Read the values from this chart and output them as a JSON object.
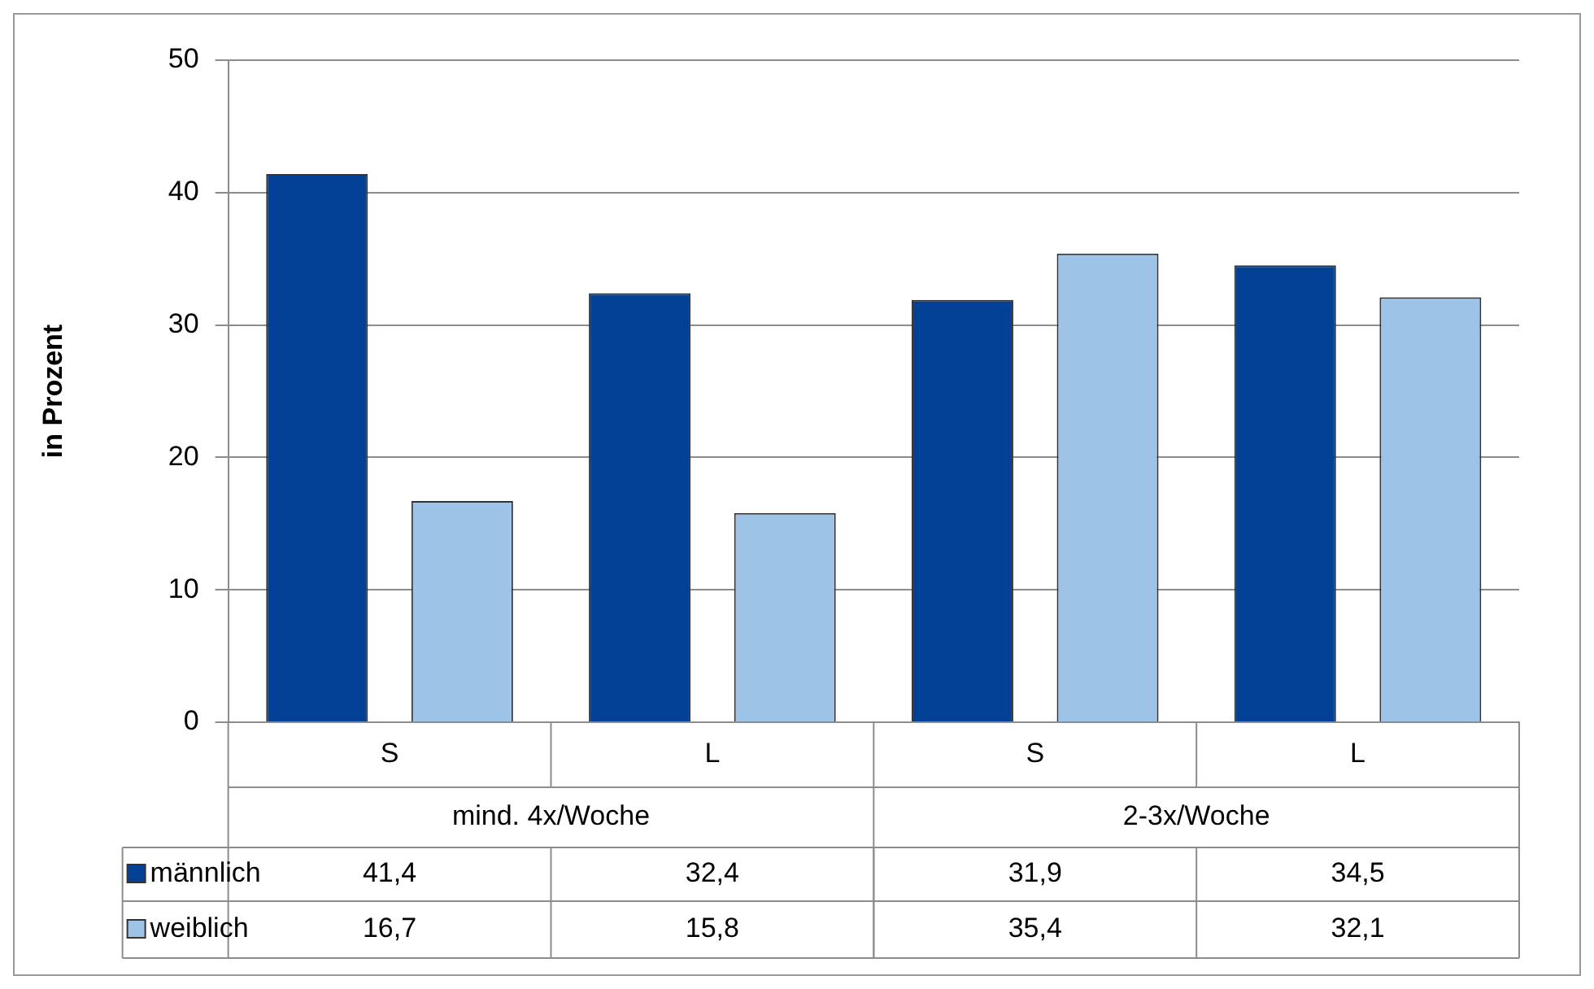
{
  "chart_data": {
    "type": "bar",
    "ylabel": "in Prozent",
    "categories": [
      "S",
      "L",
      "S",
      "L"
    ],
    "annotations": [
      "mind. 4x/Woche",
      "2-3x/Woche"
    ],
    "series": [
      {
        "name": "männlich",
        "color": "#024196",
        "values": [
          41.4,
          32.4,
          31.9,
          34.5
        ],
        "value_labels": [
          "41,4",
          "32,4",
          "31,9",
          "34,5"
        ]
      },
      {
        "name": "weiblich",
        "color": "#9dc3e6",
        "values": [
          16.7,
          15.8,
          35.4,
          32.1
        ],
        "value_labels": [
          "16,7",
          "15,8",
          "35,4",
          "32,1"
        ]
      }
    ],
    "ylim": [
      0,
      50
    ],
    "yticks": [
      0,
      10,
      20,
      30,
      40,
      50
    ],
    "grid": "y",
    "legend": "bottom"
  }
}
